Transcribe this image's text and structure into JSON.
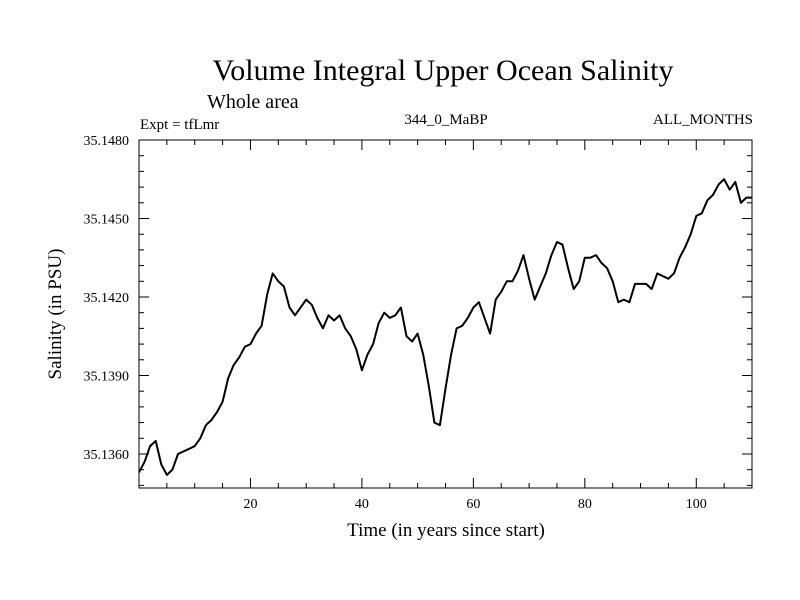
{
  "chart_data": {
    "type": "line",
    "title": "Volume Integral Upper Ocean Salinity",
    "subtitle": "Whole area",
    "experiment": "Expt = tfLmr",
    "run_id": "344_0_MaBP",
    "period": "ALL_MONTHS",
    "xlabel": "Time (in years since start)",
    "ylabel": "Salinity (in PSU)",
    "xlim": [
      0,
      110
    ],
    "ylim": [
      35.1347,
      35.148
    ],
    "x_ticks": [
      20,
      40,
      60,
      80,
      100
    ],
    "x_tick_labels": [
      "20",
      "40",
      "60",
      "80",
      "100"
    ],
    "y_ticks": [
      35.136,
      35.139,
      35.142,
      35.145,
      35.148
    ],
    "y_tick_labels": [
      "35.1360",
      "35.1390",
      "35.1420",
      "35.1450",
      "35.1480"
    ],
    "series": [
      {
        "name": "Salinity",
        "color": "#000000",
        "x": [
          0,
          1,
          2,
          3,
          4,
          5,
          6,
          7,
          8,
          9,
          10,
          11,
          12,
          13,
          14,
          15,
          16,
          17,
          18,
          19,
          20,
          21,
          22,
          23,
          24,
          25,
          26,
          27,
          28,
          29,
          30,
          31,
          32,
          33,
          34,
          35,
          36,
          37,
          38,
          39,
          40,
          41,
          42,
          43,
          44,
          45,
          46,
          47,
          48,
          49,
          50,
          51,
          52,
          53,
          54,
          55,
          56,
          57,
          58,
          59,
          60,
          61,
          62,
          63,
          64,
          65,
          66,
          67,
          68,
          69,
          70,
          71,
          72,
          73,
          74,
          75,
          76,
          77,
          78,
          79,
          80,
          81,
          82,
          83,
          84,
          85,
          86,
          87,
          88,
          89,
          90,
          91,
          92,
          93,
          94,
          95,
          96,
          97,
          98,
          99,
          100,
          101,
          102,
          103,
          104,
          105,
          106,
          107,
          108,
          109,
          110
        ],
        "values": [
          35.1353,
          35.1357,
          35.1363,
          35.1365,
          35.1356,
          35.1352,
          35.1354,
          35.136,
          35.1361,
          35.1362,
          35.1363,
          35.1366,
          35.1371,
          35.1373,
          35.1376,
          35.138,
          35.1389,
          35.1394,
          35.1397,
          35.1401,
          35.1402,
          35.1406,
          35.1409,
          35.1421,
          35.1429,
          35.1426,
          35.1424,
          35.1416,
          35.1413,
          35.1416,
          35.1419,
          35.1417,
          35.1412,
          35.1408,
          35.1413,
          35.1411,
          35.1413,
          35.1408,
          35.1405,
          35.14,
          35.1392,
          35.1398,
          35.1402,
          35.141,
          35.1414,
          35.1412,
          35.1413,
          35.1416,
          35.1405,
          35.1403,
          35.1406,
          35.1398,
          35.1386,
          35.1372,
          35.1371,
          35.1385,
          35.1398,
          35.1408,
          35.1409,
          35.1412,
          35.1416,
          35.1418,
          35.1412,
          35.1406,
          35.1419,
          35.1422,
          35.1426,
          35.1426,
          35.143,
          35.1436,
          35.1427,
          35.1419,
          35.1424,
          35.1429,
          35.1436,
          35.1441,
          35.144,
          35.1431,
          35.1423,
          35.1426,
          35.1435,
          35.1435,
          35.1436,
          35.1433,
          35.1431,
          35.1426,
          35.1418,
          35.1419,
          35.1418,
          35.1425,
          35.1425,
          35.1425,
          35.1423,
          35.1429,
          35.1428,
          35.1427,
          35.1429,
          35.1435,
          35.1439,
          35.1444,
          35.1451,
          35.1452,
          35.1457,
          35.1459,
          35.1463,
          35.1465,
          35.1461,
          35.1464,
          35.1456,
          35.1458,
          35.1458
        ]
      }
    ]
  }
}
